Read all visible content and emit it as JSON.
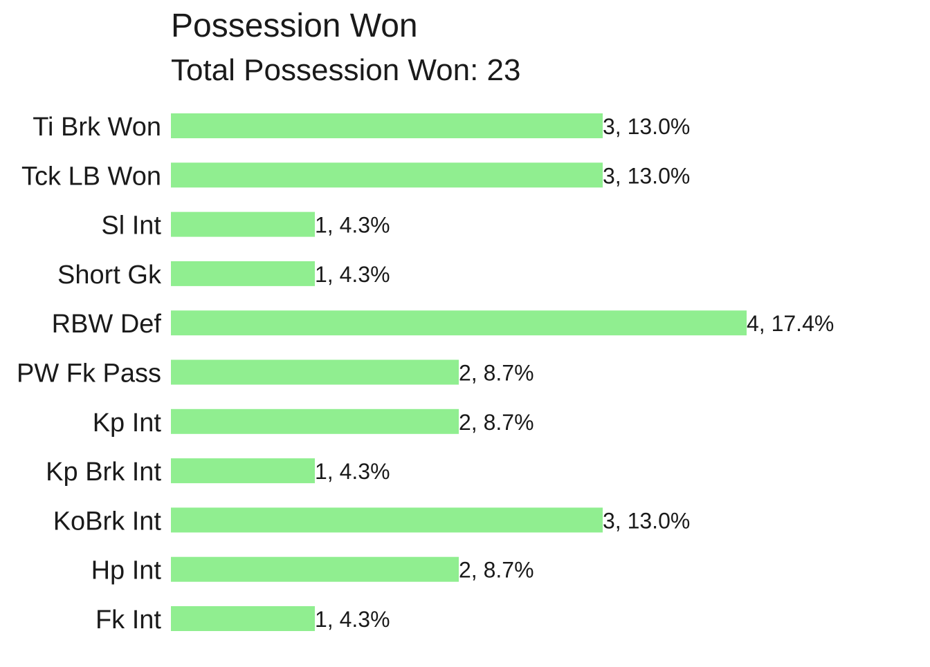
{
  "chart_data": {
    "type": "bar",
    "orientation": "horizontal",
    "title": "Possession Won",
    "subtitle": "Total Possession Won: 23",
    "categories": [
      "Ti Brk Won",
      "Tck LB Won",
      "Sl Int",
      "Short Gk",
      "RBW Def",
      "PW Fk Pass",
      "Kp Int",
      "Kp Brk Int",
      "KoBrk Int",
      "Hp Int",
      "Fk Int"
    ],
    "values": [
      3,
      3,
      1,
      1,
      4,
      2,
      2,
      1,
      3,
      2,
      1
    ],
    "data_labels": [
      "3, 13.0%",
      "3, 13.0%",
      "1, 4.3%",
      "1, 4.3%",
      "4, 17.4%",
      "2, 8.7%",
      "2, 8.7%",
      "1, 4.3%",
      "3, 13.0%",
      "2, 8.7%",
      "1, 4.3%"
    ],
    "xlim": [
      0,
      4
    ],
    "grid": false,
    "legend": "none",
    "bar_color": "#90EE90"
  }
}
